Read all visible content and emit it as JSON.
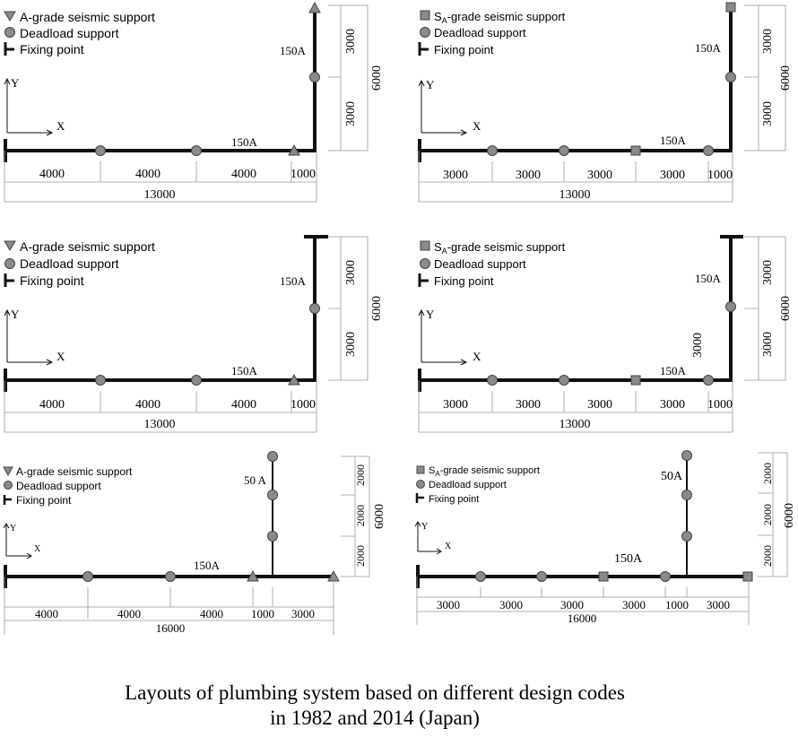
{
  "caption": {
    "line1": "Layouts of plumbing system based on different design codes",
    "line2": "in 1982 and 2014 (Japan)"
  },
  "legend": {
    "a_grade": "A-grade seismic support",
    "sa_prefix": "S",
    "sa_sub": "A",
    "sa_suffix": "-grade seismic support",
    "deadload": "Deadload support",
    "fixing": "Fixing point"
  },
  "axes": {
    "x": "X",
    "y": "Y"
  },
  "panels": {
    "p1": {
      "pipe_h": "150A",
      "pipe_v": "150A",
      "segs": [
        "4000",
        "4000",
        "4000",
        "1000"
      ],
      "total": "13000",
      "v_segs": [
        "3000",
        "3000"
      ],
      "v_total": "6000"
    },
    "p2": {
      "pipe_h": "150A",
      "pipe_v": "150A",
      "segs": [
        "3000",
        "3000",
        "3000",
        "3000",
        "1000"
      ],
      "total": "13000",
      "v_segs": [
        "3000",
        "3000"
      ],
      "v_total": "6000"
    },
    "p3": {
      "pipe_h": "150A",
      "pipe_v": "150A",
      "segs": [
        "4000",
        "4000",
        "4000",
        "1000"
      ],
      "total": "13000",
      "v_segs": [
        "3000",
        "3000"
      ],
      "v_total": "6000"
    },
    "p4": {
      "pipe_h": "150A",
      "pipe_v": "150A",
      "segs": [
        "3000",
        "3000",
        "3000",
        "3000",
        "1000"
      ],
      "total": "13000",
      "v_segs": [
        "3000",
        "3000"
      ],
      "v_total": "6000"
    },
    "p5": {
      "pipe_h": "150A",
      "pipe_v": "50 A",
      "segs": [
        "4000",
        "4000",
        "4000",
        "1000",
        "3000"
      ],
      "total": "16000",
      "v_segs": [
        "2000",
        "2000",
        "2000"
      ],
      "v_total": "6000"
    },
    "p6": {
      "pipe_h": "150A",
      "pipe_v": "50A",
      "segs": [
        "3000",
        "3000",
        "3000",
        "3000",
        "1000",
        "3000"
      ],
      "total": "16000",
      "v_segs": [
        "2000",
        "2000",
        "2000"
      ],
      "v_total": "6000"
    }
  }
}
